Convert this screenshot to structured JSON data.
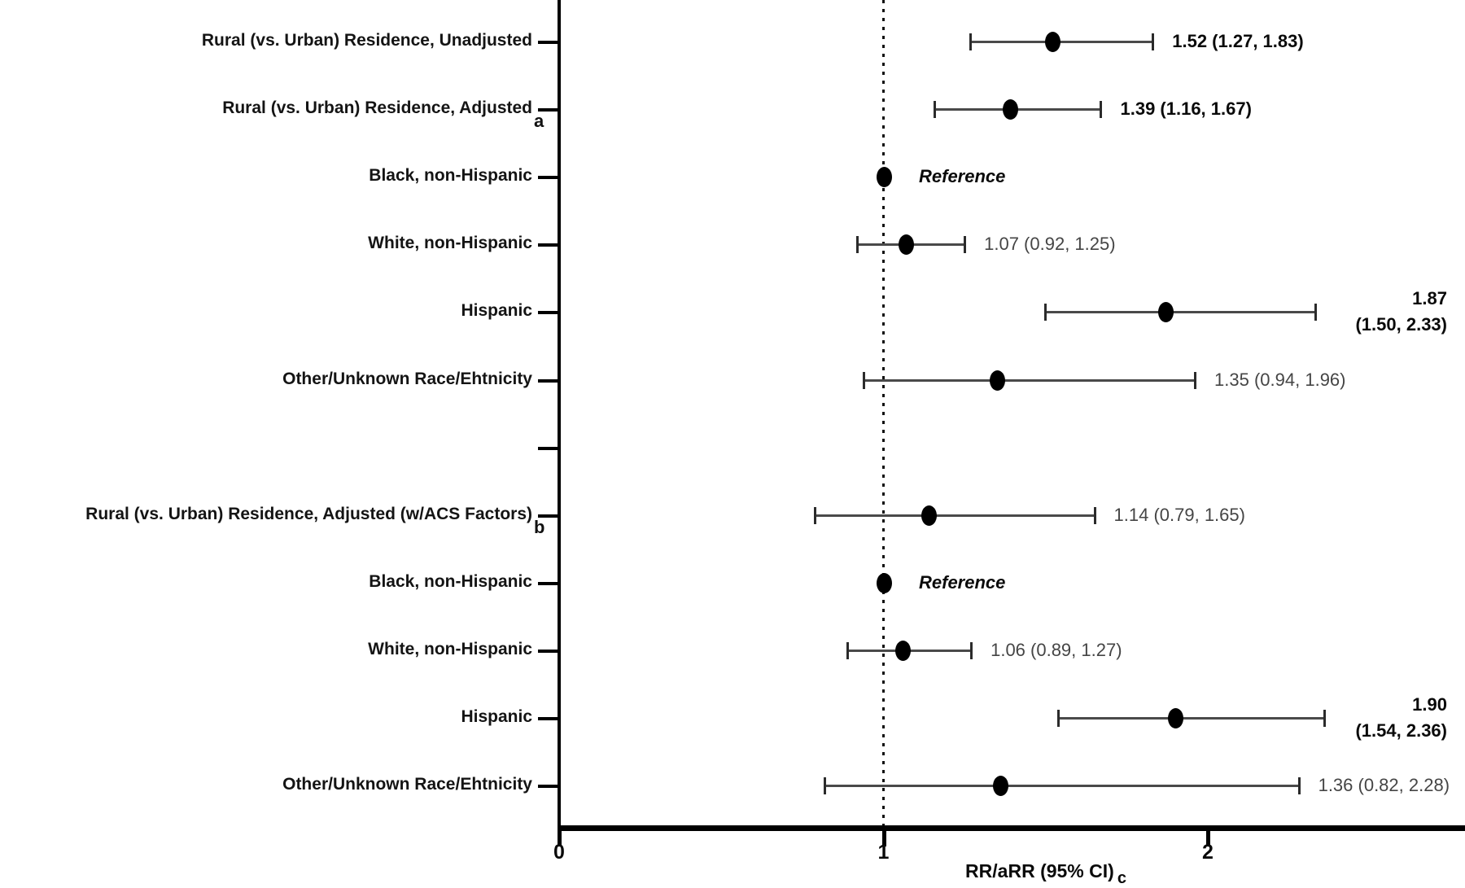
{
  "chart_data": {
    "type": "scatter",
    "subtype": "forest-plot",
    "title": "",
    "xlabel": "RR/aRR (95% CI)",
    "xlabel_subscript": "c",
    "ylabel": "",
    "xlim": [
      0,
      2.79
    ],
    "xticks": [
      "0",
      "1",
      "2"
    ],
    "xtick_values": [
      0,
      1,
      2
    ],
    "reference_line_x": 1,
    "grid": "off",
    "legend": "none",
    "colors": {
      "axis": "#000000",
      "marker": "#000000",
      "ci_line": "#4a4a4a",
      "value_text_regular": "#454545",
      "value_text_bold": "#0a0a0a",
      "label_text": "#141414",
      "background": "#ffffff"
    },
    "rows": [
      {
        "label": "Rural (vs. Urban) Residence, Unadjusted",
        "label_subscript": "",
        "estimate": 1.52,
        "ci_lower": 1.27,
        "ci_upper": 1.83,
        "value_text": "1.52 (1.27, 1.83)",
        "style": "bold",
        "value_layout": "inline"
      },
      {
        "label": "Rural (vs. Urban) Residence, Adjusted",
        "label_subscript": "a",
        "estimate": 1.39,
        "ci_lower": 1.16,
        "ci_upper": 1.67,
        "value_text": "1.39 (1.16, 1.67)",
        "style": "bold",
        "value_layout": "inline"
      },
      {
        "label": "Black, non-Hispanic",
        "label_subscript": "",
        "estimate": 1.0,
        "ci_lower": null,
        "ci_upper": null,
        "value_text": "Reference",
        "style": "reference",
        "value_layout": "inline"
      },
      {
        "label": "White, non-Hispanic",
        "label_subscript": "",
        "estimate": 1.07,
        "ci_lower": 0.92,
        "ci_upper": 1.25,
        "value_text": "1.07 (0.92, 1.25)",
        "style": "regular",
        "value_layout": "inline"
      },
      {
        "label": "Hispanic",
        "label_subscript": "",
        "estimate": 1.87,
        "ci_lower": 1.5,
        "ci_upper": 2.33,
        "value_lines": [
          "1.87",
          "(1.50, 2.33)"
        ],
        "style": "bold",
        "value_layout": "right-stacked"
      },
      {
        "label": "Other/Unknown Race/Ehtnicity",
        "label_subscript": "",
        "estimate": 1.35,
        "ci_lower": 0.94,
        "ci_upper": 1.96,
        "value_text": "1.35 (0.94, 1.96)",
        "style": "regular",
        "value_layout": "inline"
      },
      {
        "spacer": true
      },
      {
        "label": "Rural (vs. Urban) Residence, Adjusted (w/ACS Factors)",
        "label_subscript": "b",
        "estimate": 1.14,
        "ci_lower": 0.79,
        "ci_upper": 1.65,
        "value_text": "1.14 (0.79, 1.65)",
        "style": "regular",
        "value_layout": "inline"
      },
      {
        "label": "Black, non-Hispanic",
        "label_subscript": "",
        "estimate": 1.0,
        "ci_lower": null,
        "ci_upper": null,
        "value_text": "Reference",
        "style": "reference",
        "value_layout": "inline"
      },
      {
        "label": "White, non-Hispanic",
        "label_subscript": "",
        "estimate": 1.06,
        "ci_lower": 0.89,
        "ci_upper": 1.27,
        "value_text": "1.06 (0.89, 1.27)",
        "style": "regular",
        "value_layout": "inline"
      },
      {
        "label": "Hispanic",
        "label_subscript": "",
        "estimate": 1.9,
        "ci_lower": 1.54,
        "ci_upper": 2.36,
        "value_lines": [
          "1.90",
          "(1.54, 2.36)"
        ],
        "style": "bold",
        "value_layout": "right-stacked"
      },
      {
        "label": "Other/Unknown Race/Ehtnicity",
        "label_subscript": "",
        "estimate": 1.36,
        "ci_lower": 0.82,
        "ci_upper": 2.28,
        "value_text": "1.36 (0.82, 2.28)",
        "style": "regular",
        "value_layout": "inline"
      }
    ]
  }
}
